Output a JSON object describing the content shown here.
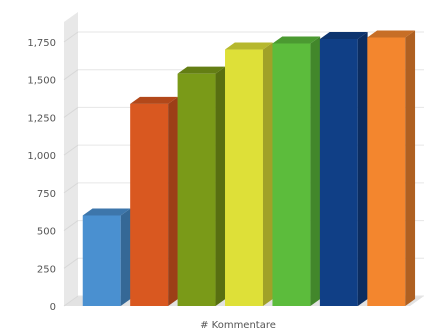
{
  "chart_data": {
    "type": "bar",
    "style": "3d-column",
    "title": "",
    "xlabel": "# Kommentare",
    "ylabel": "",
    "ylim": [
      0,
      1750
    ],
    "yticks": [
      0,
      250,
      500,
      750,
      1000,
      1250,
      1500,
      1750
    ],
    "ytick_labels": [
      "0",
      "250",
      "500",
      "750",
      "1,000",
      "1,250",
      "1,500",
      "1,750"
    ],
    "grid": true,
    "legend": "none",
    "series": [
      {
        "value": 600,
        "color": "#4a90d0"
      },
      {
        "value": 1340,
        "color": "#d95820"
      },
      {
        "value": 1540,
        "color": "#7a9a18"
      },
      {
        "value": 1700,
        "color": "#dee038"
      },
      {
        "value": 1740,
        "color": "#5cbc3c"
      },
      {
        "value": 1770,
        "color": "#103f86"
      },
      {
        "value": 1780,
        "color": "#f3862e"
      }
    ]
  }
}
